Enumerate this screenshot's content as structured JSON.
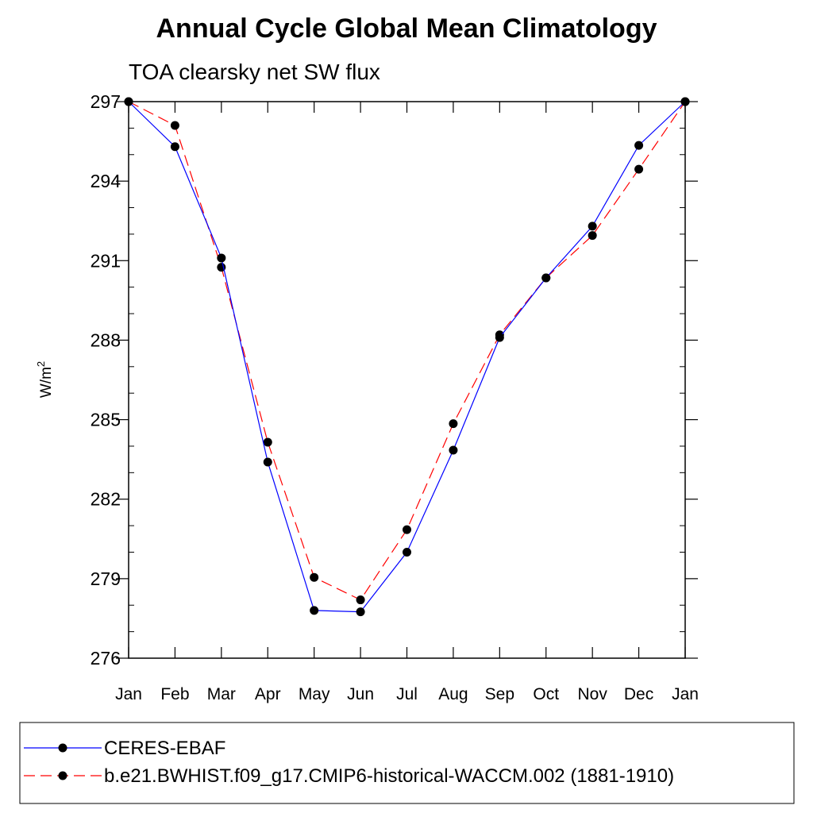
{
  "chart_data": {
    "type": "line",
    "title": "Annual Cycle Global Mean Climatology",
    "subtitle": "TOA clearsky net SW flux",
    "xlabel": "",
    "ylabel_base": "W/m",
    "ylabel_sup": "2",
    "categories": [
      "Jan",
      "Feb",
      "Mar",
      "Apr",
      "May",
      "Jun",
      "Jul",
      "Aug",
      "Sep",
      "Oct",
      "Nov",
      "Dec",
      "Jan"
    ],
    "yticks": [
      276,
      279,
      282,
      285,
      288,
      291,
      294,
      297
    ],
    "ylim": [
      276,
      297
    ],
    "grid": false,
    "legend_position": "bottom",
    "series": [
      {
        "name": "CERES-EBAF",
        "color": "#0000ff",
        "line_style": "solid",
        "marker": "filled-circle",
        "values": [
          297.0,
          295.3,
          291.1,
          283.4,
          277.8,
          277.75,
          280.0,
          283.85,
          288.1,
          290.35,
          292.3,
          295.35,
          297.0
        ]
      },
      {
        "name": "b.e21.BWHIST.f09_g17.CMIP6-historical-WACCM.002 (1881-1910)",
        "color": "#ff0000",
        "line_style": "dashed",
        "marker": "filled-circle",
        "values": [
          297.0,
          296.1,
          290.75,
          284.15,
          279.05,
          278.2,
          280.85,
          284.85,
          288.2,
          290.35,
          291.95,
          294.45,
          297.0
        ]
      }
    ]
  }
}
